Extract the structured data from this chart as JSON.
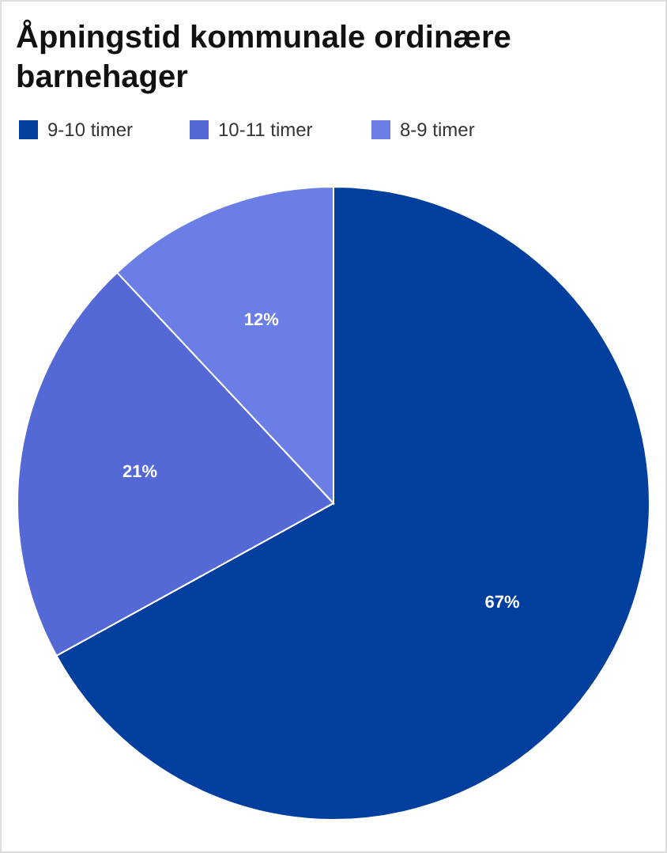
{
  "chart_data": {
    "type": "pie",
    "title": "Åpningstid kommunale ordinære barnehager",
    "categories": [
      "9-10 timer",
      "10-11 timer",
      "8-9 timer"
    ],
    "values": [
      67,
      21,
      12
    ],
    "colors": [
      "#003f9e",
      "#5468d6",
      "#6a7ee6"
    ],
    "value_labels": [
      "67%",
      "21%",
      "12%"
    ],
    "legend": "top left"
  }
}
